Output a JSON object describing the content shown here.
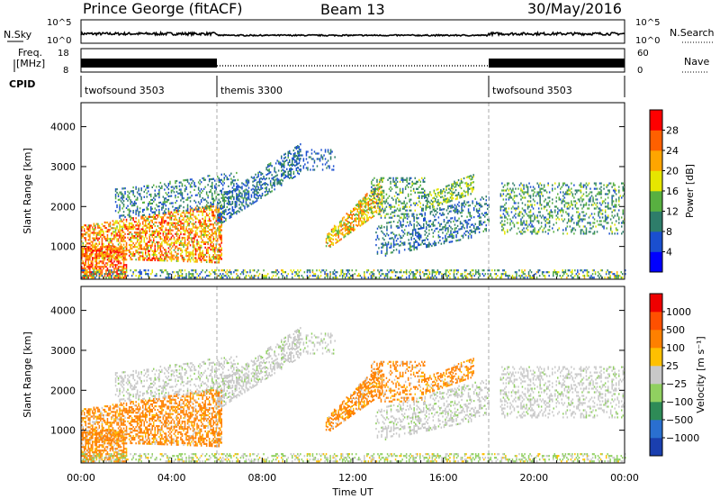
{
  "header": {
    "station": "Prince George (fitACF)",
    "beam": "Beam 13",
    "date": "30/May/2016"
  },
  "noise_panel": {
    "left_label": "N.Sky",
    "left_ticks": [
      "10^5",
      "10^0"
    ],
    "right_ticks": [
      "10^5",
      "10^0"
    ],
    "right_label": "N.Search"
  },
  "freq_panel": {
    "left_label_1": "Freq.",
    "left_label_2": "[MHz]",
    "left_ticks": [
      "18",
      "8"
    ],
    "right_ticks": [
      "60",
      "0"
    ],
    "right_label": "Nave"
  },
  "cpid": {
    "label": "CPID",
    "segments": [
      {
        "name": "twofsound 3503",
        "start_hour": 0,
        "end_hour": 6
      },
      {
        "name": "themis 3300",
        "start_hour": 6,
        "end_hour": 18
      },
      {
        "name": "twofsound 3503",
        "start_hour": 18,
        "end_hour": 24
      }
    ]
  },
  "x_axis": {
    "label": "Time UT",
    "ticks": [
      "00:00",
      "04:00",
      "08:00",
      "12:00",
      "16:00",
      "20:00",
      "00:00"
    ],
    "tick_hours": [
      0,
      4,
      8,
      12,
      16,
      20,
      24
    ]
  },
  "chart_data": [
    {
      "type": "heatmap",
      "panel": "power",
      "xlabel": "Time UT",
      "ylabel": "Slant Range [km]",
      "xlim": [
        0,
        24
      ],
      "ylim": [
        180,
        4600
      ],
      "yticks": [
        "1000",
        "2000",
        "3000",
        "4000"
      ],
      "ytick_values": [
        1000,
        2000,
        3000,
        4000
      ],
      "colorbar": {
        "label": "Power [dB]",
        "ticks": [
          "4",
          "8",
          "12",
          "16",
          "20",
          "24",
          "28"
        ],
        "tick_values": [
          4,
          8,
          12,
          16,
          20,
          24,
          28
        ],
        "range": [
          0,
          30
        ],
        "colors": [
          "#0000ff",
          "#1a4fcf",
          "#2e7d6a",
          "#58b040",
          "#e6e600",
          "#ffa500",
          "#ff6000",
          "#ff0000"
        ]
      }
    },
    {
      "type": "heatmap",
      "panel": "velocity",
      "xlabel": "Time UT",
      "ylabel": "Slant Range [km]",
      "xlim": [
        0,
        24
      ],
      "ylim": [
        180,
        4600
      ],
      "yticks": [
        "1000",
        "2000",
        "3000",
        "4000"
      ],
      "ytick_values": [
        1000,
        2000,
        3000,
        4000
      ],
      "colorbar": {
        "label": "Velocity [m s⁻¹]",
        "ticks": [
          "1000",
          "500",
          "100",
          "25",
          "−25",
          "−100",
          "−500",
          "−1000"
        ],
        "colors": [
          "#1a3faf",
          "#2a6fd0",
          "#2e8b57",
          "#90d060",
          "#c8c8c8",
          "#ffc000",
          "#ff8000",
          "#ff5000",
          "#ee0000"
        ]
      }
    }
  ]
}
